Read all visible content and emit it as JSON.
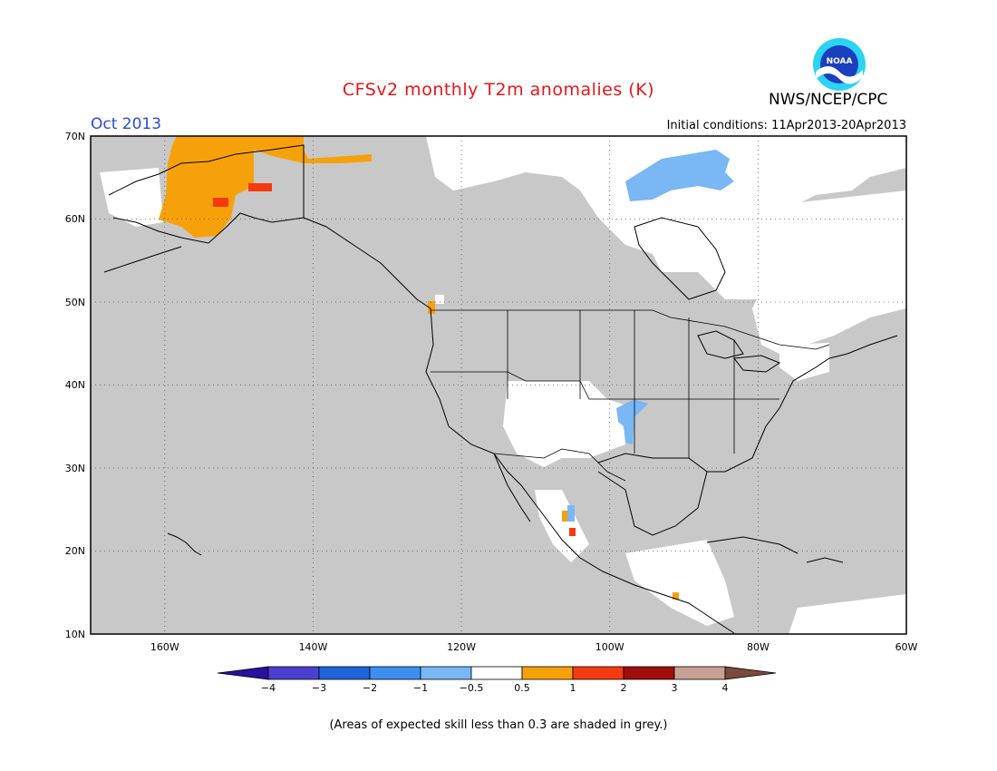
{
  "header": {
    "title": "CFSv2 monthly T2m anomalies (K)",
    "agency": "NWS/NCEP/CPC",
    "logo_text": "NOAA",
    "month": "Oct 2013",
    "initial_conditions": "Initial conditions: 11Apr2013-20Apr2013"
  },
  "map": {
    "lat_labels": [
      "70N",
      "60N",
      "50N",
      "40N",
      "30N",
      "20N",
      "10N"
    ],
    "lon_labels": [
      "160W",
      "140W",
      "120W",
      "100W",
      "80W",
      "60W"
    ],
    "lat_range": [
      10,
      70
    ],
    "lon_range": [
      -170,
      -60
    ],
    "grid": "dotted",
    "colors": {
      "skill_below_threshold": "#c8c8c8",
      "neutral": "#ffffff",
      "land_outline": "#000000"
    }
  },
  "colorbar": {
    "tick_labels": [
      "−4",
      "−3",
      "−2",
      "−1",
      "−0.5",
      "0.5",
      "1",
      "2",
      "3",
      "4"
    ],
    "colors": [
      "#2b0f9e",
      "#4b3fd0",
      "#1f63d9",
      "#3d8ef0",
      "#79b7f5",
      "#ffffff",
      "#f7a10a",
      "#f53a10",
      "#a10d0d",
      "#c8a094",
      "#7b4a3a"
    ]
  },
  "footer": {
    "skill_note": "(Areas of expected skill less than 0.3 are shaded in grey.)"
  }
}
